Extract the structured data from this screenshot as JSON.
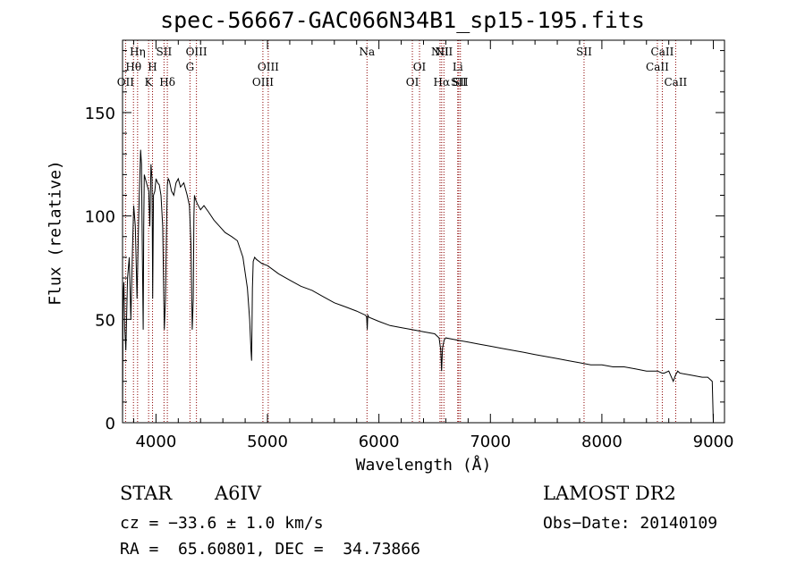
{
  "header": {
    "title": "spec-56667-GAC066N34B1_sp15-195.fits"
  },
  "chart_data": {
    "type": "line",
    "title": "spec-56667-GAC066N34B1_sp15-195.fits",
    "xlabel": "Wavelength (Å)",
    "ylabel": "Flux (relative)",
    "xlim": [
      3700,
      9100
    ],
    "ylim": [
      0,
      185
    ],
    "x_ticks": [
      4000,
      5000,
      6000,
      7000,
      8000,
      9000
    ],
    "y_ticks": [
      0,
      50,
      100,
      150
    ],
    "series": [
      {
        "x": [
          3700,
          3705,
          3712,
          3720,
          3730,
          3745,
          3760,
          3775,
          3790,
          3800,
          3815,
          3830,
          3845,
          3855,
          3862,
          3870,
          3878,
          3885,
          3890,
          3895,
          3905,
          3920,
          3935,
          3945,
          3955,
          3965,
          3970,
          3978,
          3990,
          4000,
          4015,
          4030,
          4045,
          4060,
          4075,
          4085,
          4095,
          4102,
          4110,
          4120,
          4140,
          4160,
          4180,
          4200,
          4220,
          4250,
          4280,
          4300,
          4315,
          4325,
          4335,
          4340,
          4345,
          4355,
          4370,
          4400,
          4430,
          4470,
          4520,
          4570,
          4620,
          4680,
          4730,
          4780,
          4820,
          4840,
          4852,
          4858,
          4861,
          4865,
          4872,
          4885,
          4900,
          4950,
          5000,
          5050,
          5100,
          5200,
          5300,
          5400,
          5500,
          5600,
          5700,
          5800,
          5880,
          5890,
          5895,
          5900,
          5910,
          6000,
          6100,
          6200,
          6300,
          6400,
          6500,
          6540,
          6555,
          6562,
          6570,
          6585,
          6600,
          6700,
          6800,
          6900,
          7000,
          7100,
          7200,
          7300,
          7400,
          7500,
          7600,
          7700,
          7800,
          7900,
          8000,
          8100,
          8200,
          8300,
          8400,
          8500,
          8540,
          8560,
          8600,
          8640,
          8660,
          8680,
          8700,
          8800,
          8900,
          8950,
          8990,
          9000
        ],
        "y": [
          0,
          60,
          68,
          45,
          35,
          70,
          80,
          50,
          85,
          105,
          95,
          60,
          100,
          118,
          132,
          125,
          80,
          45,
          95,
          120,
          118,
          115,
          112,
          95,
          125,
          118,
          60,
          110,
          112,
          118,
          116,
          115,
          110,
          95,
          45,
          60,
          95,
          115,
          118,
          117,
          112,
          110,
          116,
          118,
          114,
          116,
          110,
          105,
          85,
          45,
          60,
          100,
          110,
          108,
          106,
          103,
          105,
          102,
          98,
          95,
          92,
          90,
          88,
          80,
          65,
          50,
          35,
          30,
          45,
          65,
          78,
          80,
          79,
          77,
          76,
          74,
          72,
          69,
          66,
          64,
          61,
          58,
          56,
          54,
          52,
          51,
          45,
          52,
          51,
          49,
          47,
          46,
          45,
          44,
          43,
          41,
          35,
          25,
          36,
          40,
          41,
          40,
          39,
          38,
          37,
          36,
          35,
          34,
          33,
          32,
          31,
          30,
          29,
          28,
          28,
          27,
          27,
          26,
          25,
          25,
          24,
          24,
          25,
          20,
          23,
          25,
          24,
          23,
          22,
          22,
          20,
          0
        ]
      }
    ],
    "line_markers": [
      {
        "label": "OII",
        "x": 3727,
        "row": 3
      },
      {
        "label": "Hθ",
        "x": 3798,
        "row": 2
      },
      {
        "label": "Hη",
        "x": 3835,
        "row": 1
      },
      {
        "label": "K",
        "x": 3934,
        "row": 3
      },
      {
        "label": "H",
        "x": 3969,
        "row": 2
      },
      {
        "label": "SII",
        "x": 4072,
        "row": 1
      },
      {
        "label": "Hδ",
        "x": 4102,
        "row": 3
      },
      {
        "label": "G",
        "x": 4305,
        "row": 2
      },
      {
        "label": "OIII",
        "x": 4363,
        "row": 1
      },
      {
        "label": "OIII",
        "x": 4959,
        "row": 3
      },
      {
        "label": "OIII",
        "x": 5007,
        "row": 2
      },
      {
        "label": "Na",
        "x": 5893,
        "row": 1
      },
      {
        "label": "OI",
        "x": 6300,
        "row": 3
      },
      {
        "label": "OI",
        "x": 6364,
        "row": 2
      },
      {
        "label": "NII",
        "x": 6548,
        "row": 1
      },
      {
        "label": "Hα",
        "x": 6563,
        "row": 3
      },
      {
        "label": "NII",
        "x": 6583,
        "row": 1
      },
      {
        "label": "Li",
        "x": 6707,
        "row": 2
      },
      {
        "label": "SII",
        "x": 6716,
        "row": 3
      },
      {
        "label": "SII",
        "x": 6731,
        "row": 3
      },
      {
        "label": "SII",
        "x": 7840,
        "row": 1
      },
      {
        "label": "CaII",
        "x": 8498,
        "row": 2
      },
      {
        "label": "CaII",
        "x": 8542,
        "row": 1
      },
      {
        "label": "CaII",
        "x": 8662,
        "row": 3
      }
    ],
    "marker_color": "#8b0000",
    "grid": false,
    "legend": "none"
  },
  "info": {
    "class": "STAR",
    "subclass": "A6IV",
    "cz": "cz = −33.6 ± 1.0 km/s",
    "radec": "RA =  65.60801, DEC =  34.73866",
    "survey": "LAMOST DR2",
    "obsdate": "Obs−Date: 20140109"
  }
}
